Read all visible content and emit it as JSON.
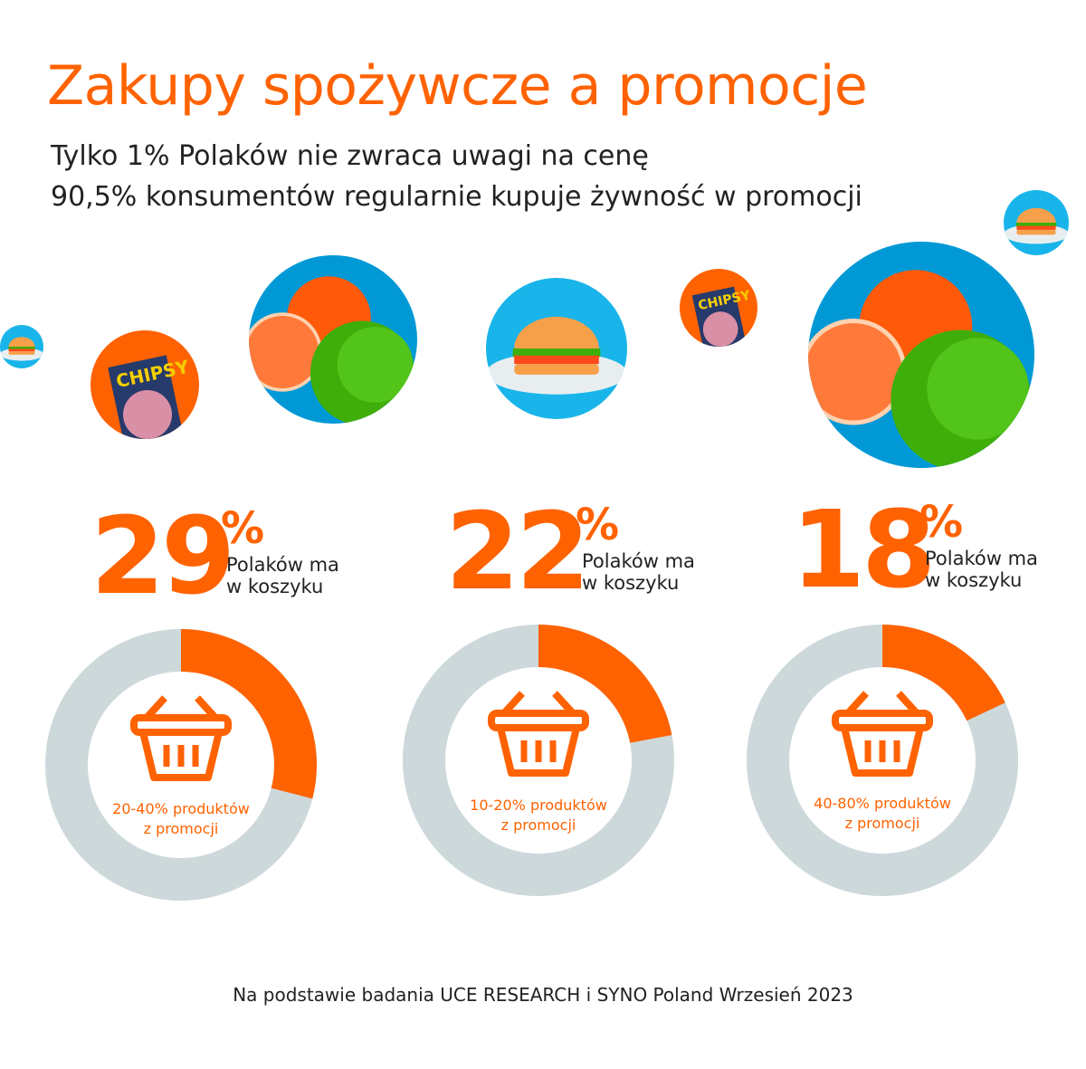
{
  "title": "Zakupy spożywcze a promocje",
  "subtitle": [
    "Tylko 1% Polaków nie zwraca uwagi na cenę",
    "90,5% konsumentów regularnie kupuje żywność w promocji"
  ],
  "colors": {
    "accent": "#FF6200",
    "ring": "#CDD8DA",
    "illustration_blue": "#0099D6"
  },
  "illustrations": [
    "burger-plate",
    "chipsy-bag",
    "orange-apple",
    "burger-plate",
    "chipsy-bag",
    "orange-apple",
    "burger-plate"
  ],
  "chipsy_label": "CHIPSY",
  "chart_data": [
    {
      "type": "pie",
      "variant": "donut",
      "value": 29,
      "max": 100,
      "big": "29",
      "pct": "%",
      "caption": [
        "Polaków ma",
        "w koszyku"
      ],
      "inner": [
        "20-40% produktów",
        "z promocji"
      ]
    },
    {
      "type": "pie",
      "variant": "donut",
      "value": 22,
      "max": 100,
      "big": "22",
      "pct": "%",
      "caption": [
        "Polaków ma",
        "w koszyku"
      ],
      "inner": [
        "10-20% produktów",
        "z promocji"
      ]
    },
    {
      "type": "pie",
      "variant": "donut",
      "value": 18,
      "max": 100,
      "big": "18",
      "pct": "%",
      "caption": [
        "Polaków ma",
        "w koszyku"
      ],
      "inner": [
        "40-80% produktów",
        "z promocji"
      ]
    }
  ],
  "footer": "Na podstawie badania UCE RESEARCH i SYNO Poland Wrzesień 2023"
}
